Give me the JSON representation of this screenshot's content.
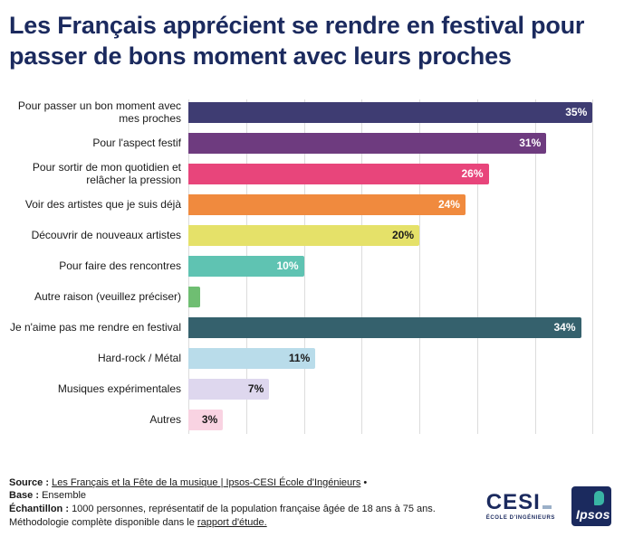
{
  "title": "Les Français apprécient se rendre en festival pour passer de bons moment avec leurs proches",
  "chart_data": {
    "type": "bar",
    "orientation": "horizontal",
    "title": "Les Français apprécient se rendre en festival pour passer de bons moment avec leurs proches",
    "xlim": [
      0,
      36
    ],
    "gridline_step": 5,
    "grid": true,
    "legend": false,
    "bars": [
      {
        "label": "Pour passer un bon moment avec mes proches",
        "value": 35,
        "value_label": "35%",
        "color": "#3e3c72",
        "text_color": "#ffffff"
      },
      {
        "label": "Pour l'aspect festif",
        "value": 31,
        "value_label": "31%",
        "color": "#6e3b7f",
        "text_color": "#ffffff"
      },
      {
        "label": "Pour sortir de mon quotidien et relâcher la pression",
        "value": 26,
        "value_label": "26%",
        "color": "#e8457b",
        "text_color": "#ffffff"
      },
      {
        "label": "Voir des artistes que je suis déjà",
        "value": 24,
        "value_label": "24%",
        "color": "#f08a3e",
        "text_color": "#ffffff"
      },
      {
        "label": "Découvrir de nouveaux artistes",
        "value": 20,
        "value_label": "20%",
        "color": "#e5e169",
        "text_color": "#1a1a1a"
      },
      {
        "label": "Pour faire des rencontres",
        "value": 10,
        "value_label": "10%",
        "color": "#5fc3b2",
        "text_color": "#ffffff"
      },
      {
        "label": "Autre raison (veuillez préciser)",
        "value": 1,
        "value_label": "",
        "color": "#6fbe72",
        "text_color": "#1a1a1a"
      },
      {
        "label": "Je n'aime pas me rendre en festival",
        "value": 34,
        "value_label": "34%",
        "color": "#35616d",
        "text_color": "#ffffff"
      },
      {
        "label": "Hard-rock / Métal",
        "value": 11,
        "value_label": "11%",
        "color": "#b9dcea",
        "text_color": "#1a1a1a"
      },
      {
        "label": "Musiques expérimentales",
        "value": 7,
        "value_label": "7%",
        "color": "#ded7ee",
        "text_color": "#1a1a1a"
      },
      {
        "label": "Autres",
        "value": 3,
        "value_label": "3%",
        "color": "#f9d3e2",
        "text_color": "#1a1a1a"
      }
    ]
  },
  "footer": {
    "source_label": "Source :",
    "source_link": "Les Français et la Fête de la musique | Ipsos-CESI École d'Ingénieurs",
    "source_suffix": "•",
    "base_label": "Base :",
    "base_value": "Ensemble",
    "sample_label": "Échantillon :",
    "sample_text": "1000 personnes, représentatif de la population française âgée de 18 ans à 75 ans.",
    "method_text": "Méthodologie complète disponible dans le",
    "method_link": "rapport d'étude."
  },
  "logos": {
    "cesi_text": "CESI",
    "cesi_sub": "ÉCOLE D'INGÉNIEURS",
    "ipsos_text": "Ipsos"
  },
  "colors": {
    "title": "#1b2a5e",
    "gridline": "#dcdcdc",
    "text": "#1a1a1a"
  }
}
